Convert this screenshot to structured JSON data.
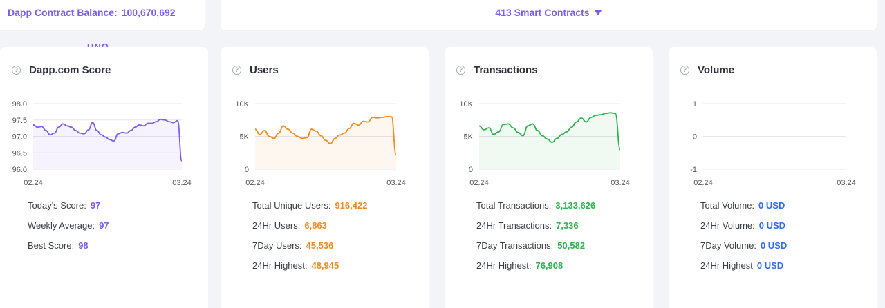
{
  "header": {
    "balance_label": "Dapp Contract Balance:",
    "balance_value": "100,670,692",
    "contracts_label": "413 Smart Contracts",
    "peek_text": "UNO"
  },
  "cards": [
    {
      "title": "Dapp.com Score",
      "color": "#7b5cf0",
      "stats": [
        {
          "label": "Today's Score:",
          "value": "97"
        },
        {
          "label": "Weekly Average:",
          "value": "97"
        },
        {
          "label": "Best Score:",
          "value": "98"
        }
      ]
    },
    {
      "title": "Users",
      "color": "#f28a1e",
      "stats": [
        {
          "label": "Total Unique Users:",
          "value": "916,422"
        },
        {
          "label": "24Hr Users:",
          "value": "6,863"
        },
        {
          "label": "7Day Users:",
          "value": "45,536"
        },
        {
          "label": "24Hr Highest:",
          "value": "48,945"
        }
      ]
    },
    {
      "title": "Transactions",
      "color": "#2db34d",
      "stats": [
        {
          "label": "Total Transactions:",
          "value": "3,133,626"
        },
        {
          "label": "24Hr Transactions:",
          "value": "7,336"
        },
        {
          "label": "7Day Transactions:",
          "value": "50,582"
        },
        {
          "label": "24Hr Highest:",
          "value": "76,908"
        }
      ]
    },
    {
      "title": "Volume",
      "color": "#2f6cf2",
      "stats": [
        {
          "label": "Total Volume:",
          "value": "0 USD"
        },
        {
          "label": "24Hr Volume:",
          "value": "0 USD"
        },
        {
          "label": "7Day Volume:",
          "value": "0 USD"
        },
        {
          "label": "24Hr Highest",
          "value": "0 USD"
        }
      ]
    }
  ],
  "chart_data": [
    {
      "type": "area",
      "title": "Dapp.com Score",
      "x_ticks": [
        "02.24",
        "03.24"
      ],
      "y_ticks": [
        "96.0",
        "96.5",
        "97.0",
        "97.5",
        "98.0"
      ],
      "ylim": [
        96.0,
        98.0
      ],
      "grid": true,
      "color": "#7b5cf0",
      "values": [
        97.35,
        97.28,
        97.3,
        97.18,
        97.05,
        97.1,
        97.28,
        97.38,
        97.32,
        97.28,
        97.18,
        97.1,
        97.08,
        97.2,
        97.42,
        97.18,
        97.05,
        96.98,
        96.9,
        96.86,
        97.08,
        97.12,
        97.1,
        97.18,
        97.28,
        97.35,
        97.32,
        97.4,
        97.4,
        97.45,
        97.52,
        97.5,
        97.45,
        97.42,
        97.48,
        96.25
      ]
    },
    {
      "type": "area",
      "title": "Users",
      "x_ticks": [
        "02.24",
        "03.24"
      ],
      "y_ticks": [
        "0",
        "5K",
        "10K"
      ],
      "ylim": [
        0,
        10000
      ],
      "grid": true,
      "color": "#f28a1e",
      "values": [
        6100,
        5300,
        5900,
        5000,
        4700,
        5500,
        6600,
        6100,
        5500,
        5000,
        4700,
        4800,
        6100,
        5800,
        5100,
        4400,
        3900,
        4700,
        5200,
        5500,
        6200,
        7000,
        6700,
        7300,
        7200,
        7900,
        7800,
        7900,
        8000,
        8000,
        2200
      ]
    },
    {
      "type": "area",
      "title": "Transactions",
      "x_ticks": [
        "02.24",
        "03.24"
      ],
      "y_ticks": [
        "0",
        "5K",
        "10K"
      ],
      "ylim": [
        0,
        10000
      ],
      "grid": true,
      "color": "#2db34d",
      "values": [
        6600,
        6000,
        6300,
        5300,
        5700,
        6800,
        6900,
        6300,
        5600,
        5100,
        6600,
        6900,
        5900,
        5100,
        4600,
        4100,
        4700,
        5300,
        5700,
        6400,
        7200,
        7800,
        7200,
        7900,
        8200,
        8300,
        8500,
        8600,
        8500,
        3000
      ]
    },
    {
      "type": "line",
      "title": "Volume",
      "x_ticks": [
        "02.24",
        "03.24"
      ],
      "y_ticks": [
        "-1",
        "0",
        "1"
      ],
      "ylim": [
        -1,
        1
      ],
      "grid": true,
      "color": "#2f6cf2",
      "values": []
    }
  ]
}
